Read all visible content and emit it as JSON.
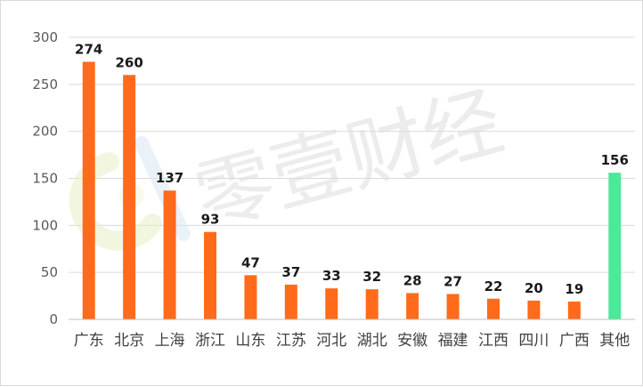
{
  "chart_data": {
    "type": "bar",
    "categories": [
      "广东",
      "北京",
      "上海",
      "浙江",
      "山东",
      "江苏",
      "河北",
      "湖北",
      "安徽",
      "福建",
      "江西",
      "四川",
      "广西",
      "其他"
    ],
    "values": [
      274,
      260,
      137,
      93,
      47,
      37,
      33,
      32,
      28,
      27,
      22,
      20,
      19,
      156
    ],
    "y_ticks": [
      "0",
      "50",
      "100",
      "150",
      "200",
      "250",
      "300"
    ],
    "ylim": [
      0,
      300
    ],
    "grid": true,
    "legend": "none",
    "colors": {
      "bar": "#ff6b1a",
      "highlight_bar": "#4de89a",
      "grid": "#d9d9d9"
    },
    "highlight_category": "其他",
    "watermark": "零壹财经"
  }
}
